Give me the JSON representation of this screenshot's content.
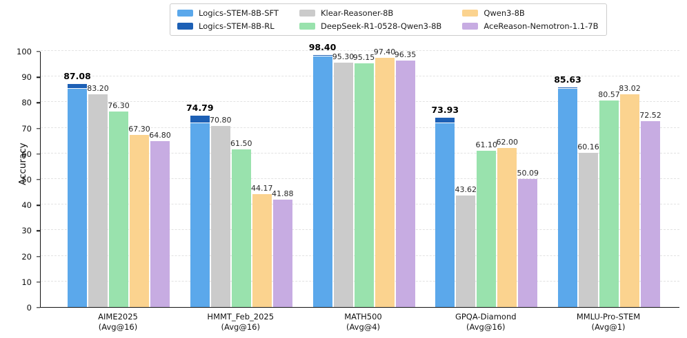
{
  "chart_data": {
    "type": "bar",
    "title": "",
    "xlabel": "",
    "ylabel": "Accuracy",
    "ylim": [
      0,
      100
    ],
    "ytick_step": 10,
    "grid": "horizontal-dashed",
    "legend_position": "top-center",
    "colors": {
      "sft_light_blue": "#5BA8EB",
      "rl_dark_blue": "#1D60B5",
      "klear_gray": "#CBCBCB",
      "deepseek_green": "#99E2AD",
      "qwen_orange": "#FBD38F",
      "acereason_purple": "#C7ACE2"
    },
    "legend": [
      {
        "label": "Logics-STEM-8B-SFT",
        "color": "#5BA8EB"
      },
      {
        "label": "Logics-STEM-8B-RL",
        "color": "#1D60B5"
      },
      {
        "label": "Klear-Reasoner-8B",
        "color": "#CBCBCB"
      },
      {
        "label": "DeepSeek-R1-0528-Qwen3-8B",
        "color": "#99E2AD"
      },
      {
        "label": "Qwen3-8B",
        "color": "#FBD38F"
      },
      {
        "label": "AceReason-Nemotron-1.1-7B",
        "color": "#C7ACE2"
      }
    ],
    "categories": [
      {
        "name": "AIME2025",
        "avg": "(Avg@16)"
      },
      {
        "name": "HMMT_Feb_2025",
        "avg": "(Avg@16)"
      },
      {
        "name": "MATH500",
        "avg": "(Avg@4)"
      },
      {
        "name": "GPQA-Diamond",
        "avg": "(Avg@16)"
      },
      {
        "name": "MMLU-Pro-STEM",
        "avg": "(Avg@1)"
      }
    ],
    "first_bar_stacked": {
      "total_series": "Logics-STEM-8B-RL",
      "base_series": "Logics-STEM-8B-SFT",
      "totals": [
        "87.08",
        "74.79",
        "98.40",
        "73.93",
        "85.63"
      ],
      "sft_split_estimate": [
        85.3,
        71.8,
        97.9,
        71.9,
        85.2
      ],
      "total_color": "#1D60B5",
      "base_color": "#5BA8EB"
    },
    "series": [
      {
        "name": "Klear-Reasoner-8B",
        "color": "#CBCBCB",
        "values": [
          "83.20",
          "70.80",
          "95.30",
          "43.62",
          "60.16"
        ]
      },
      {
        "name": "DeepSeek-R1-0528-Qwen3-8B",
        "color": "#99E2AD",
        "values": [
          "76.30",
          "61.50",
          "95.15",
          "61.10",
          "80.57"
        ]
      },
      {
        "name": "Qwen3-8B",
        "color": "#FBD38F",
        "values": [
          "67.30",
          "44.17",
          "97.40",
          "62.00",
          "83.02"
        ]
      },
      {
        "name": "AceReason-Nemotron-1.1-7B",
        "color": "#C7ACE2",
        "values": [
          "64.80",
          "41.88",
          "96.35",
          "50.09",
          "72.52"
        ]
      }
    ]
  }
}
